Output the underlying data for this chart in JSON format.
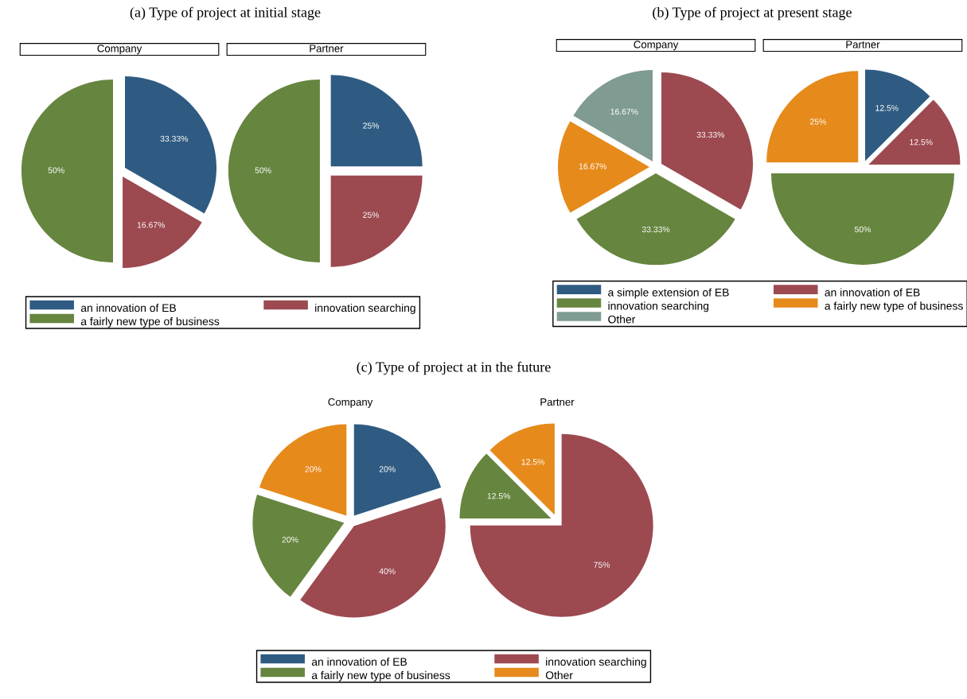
{
  "chart_data": [
    {
      "type": "pie",
      "title": "(a) Type of project at initial stage",
      "legend": "bottom",
      "categories": [
        "an innovation of EB",
        "innovation searching",
        "a fairly new type of business"
      ],
      "colors": [
        "#2f5b82",
        "#9c4950",
        "#66853f"
      ],
      "series": [
        {
          "name": "Company",
          "values": [
            33.33,
            16.67,
            50
          ],
          "value_labels": [
            "33.33%",
            "16.67%",
            "50%"
          ]
        },
        {
          "name": "Partner",
          "values": [
            25,
            25,
            50
          ],
          "value_labels": [
            "25%",
            "25%",
            "50%"
          ]
        }
      ]
    },
    {
      "type": "pie",
      "title": "(b) Type of project at present stage",
      "legend": "bottom",
      "categories": [
        "a simple extension of EB",
        "an innovation of EB",
        "innovation searching",
        "a fairly new type of business",
        "Other"
      ],
      "colors": [
        "#2f5b82",
        "#9c4950",
        "#66853f",
        "#e68a1c",
        "#7f9b92"
      ],
      "series": [
        {
          "name": "Company",
          "values": [
            0,
            33.33,
            33.33,
            16.67,
            16.67
          ],
          "value_labels": [
            null,
            "33.33%",
            "33.33%",
            "16.67%",
            "16.67%"
          ]
        },
        {
          "name": "Partner",
          "values": [
            12.5,
            12.5,
            50,
            25,
            0
          ],
          "value_labels": [
            "12.5%",
            "12.5%",
            "50%",
            "25%",
            null
          ]
        }
      ]
    },
    {
      "type": "pie",
      "title": "(c) Type of project at in the future",
      "legend": "bottom",
      "categories": [
        "an innovation of EB",
        "innovation searching",
        "a fairly new type of business",
        "Other"
      ],
      "colors": [
        "#2f5b82",
        "#9c4950",
        "#66853f",
        "#e68a1c"
      ],
      "series": [
        {
          "name": "Company",
          "values": [
            20,
            40,
            20,
            20
          ],
          "value_labels": [
            "20%",
            "40%",
            "20%",
            "20%"
          ]
        },
        {
          "name": "Partner",
          "values": [
            0,
            75,
            12.5,
            12.5
          ],
          "value_labels": [
            null,
            "75%",
            "12.5%",
            "12.5%"
          ]
        }
      ]
    }
  ]
}
